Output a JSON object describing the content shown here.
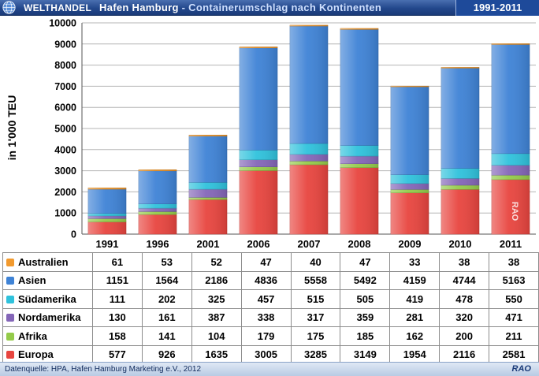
{
  "header": {
    "brand": "WELTHANDEL",
    "title_main": "Hafen Hamburg",
    "title_sub": " - Containerumschlag nach Kontinenten",
    "years": "1991-2011"
  },
  "footer": {
    "source": "Datenquelle: HPA, Hafen Hamburg Marketing e.V., 2012",
    "mark": "RAO"
  },
  "watermark": "RAO",
  "colors": {
    "Europa": "#e8453f",
    "Afrika": "#94cb4a",
    "Nordamerika": "#8466b8",
    "Südamerika": "#2fc2dc",
    "Asien": "#3f83d6",
    "Australien": "#f29a2e",
    "header": "#23488c"
  },
  "chart_data": {
    "type": "bar",
    "stacked": true,
    "categories": [
      "1991",
      "1996",
      "2001",
      "2006",
      "2007",
      "2008",
      "2009",
      "2010",
      "2011"
    ],
    "ylabel": "in 1'000 TEU",
    "ylim": [
      0,
      10000
    ],
    "yticks": [
      0,
      1000,
      2000,
      3000,
      4000,
      5000,
      6000,
      7000,
      8000,
      9000,
      10000
    ],
    "grid": true,
    "legend": "table",
    "series": [
      {
        "name": "Europa",
        "values": [
          577,
          926,
          1635,
          3005,
          3285,
          3149,
          1954,
          2116,
          2581
        ]
      },
      {
        "name": "Afrika",
        "values": [
          158,
          141,
          104,
          179,
          175,
          185,
          162,
          200,
          211
        ]
      },
      {
        "name": "Nordamerika",
        "values": [
          130,
          161,
          387,
          338,
          317,
          359,
          281,
          320,
          471
        ]
      },
      {
        "name": "Südamerika",
        "values": [
          111,
          202,
          325,
          457,
          515,
          505,
          419,
          478,
          550
        ]
      },
      {
        "name": "Asien",
        "values": [
          1151,
          1564,
          2186,
          4836,
          5558,
          5492,
          4159,
          4744,
          5163
        ]
      },
      {
        "name": "Australien",
        "values": [
          61,
          53,
          52,
          47,
          40,
          47,
          33,
          38,
          38
        ]
      }
    ],
    "table_order": [
      "Australien",
      "Asien",
      "Südamerika",
      "Nordamerika",
      "Afrika",
      "Europa"
    ]
  }
}
